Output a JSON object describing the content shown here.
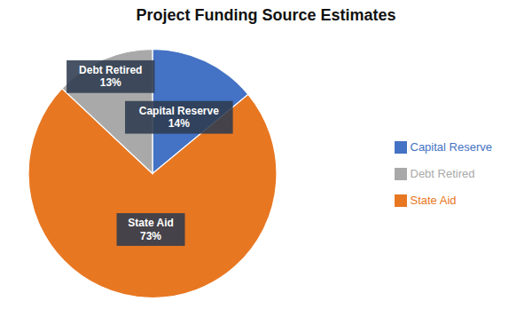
{
  "chart_data": {
    "type": "pie",
    "title": "Project Funding Source Estimates",
    "categories": [
      "Capital Reserve",
      "State Aid",
      "Debt Retired"
    ],
    "values": [
      14,
      73,
      13
    ],
    "value_labels": [
      "14%",
      "73%",
      "13%"
    ],
    "colors": [
      "#4472C4",
      "#E87722",
      "#A9A9A9"
    ],
    "data_labels": true,
    "legend": "right"
  }
}
